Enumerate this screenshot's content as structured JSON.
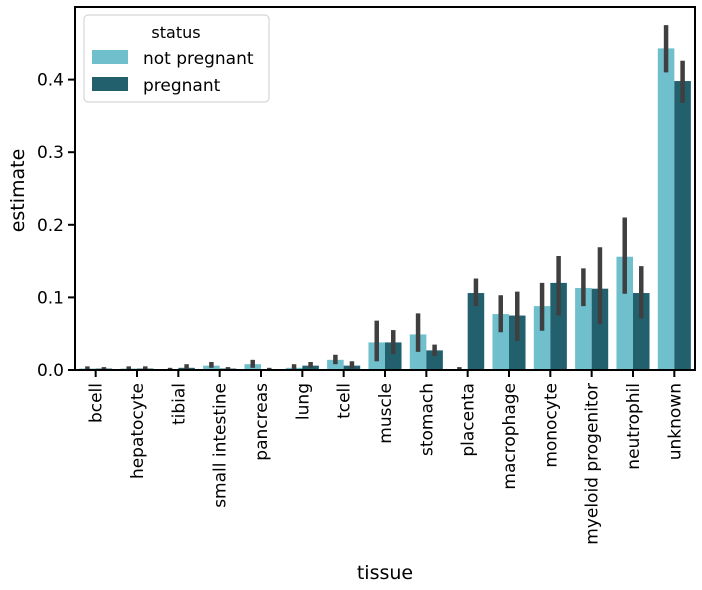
{
  "chart_data": {
    "type": "bar",
    "xlabel": "tissue",
    "ylabel": "estimate",
    "ylim": [
      0,
      0.5
    ],
    "yticks": [
      0.0,
      0.1,
      0.2,
      0.3,
      0.4
    ],
    "ytick_labels": [
      "0.0",
      "0.1",
      "0.2",
      "0.3",
      "0.4"
    ],
    "grid": false,
    "legend": {
      "title": "status",
      "position": "top-left"
    },
    "categories": [
      "bcell",
      "hepatocyte",
      "tibial",
      "small intestine",
      "pancreas",
      "lung",
      "tcell",
      "muscle",
      "stomach",
      "placenta",
      "macrophage",
      "monocyte",
      "myeloid progenitor",
      "neutrophil",
      "unknown"
    ],
    "series": [
      {
        "name": "not pregnant",
        "color": "#6fbfcc",
        "values": [
          0.002,
          0.002,
          0.001,
          0.006,
          0.008,
          0.003,
          0.014,
          0.038,
          0.049,
          0.0,
          0.077,
          0.088,
          0.113,
          0.156,
          0.443
        ],
        "err_low": [
          0.0,
          0.0,
          0.0,
          0.003,
          0.003,
          0.0,
          0.008,
          0.012,
          0.025,
          0.0,
          0.052,
          0.054,
          0.088,
          0.105,
          0.41
        ],
        "err_high": [
          0.005,
          0.005,
          0.003,
          0.011,
          0.014,
          0.008,
          0.021,
          0.068,
          0.078,
          0.004,
          0.103,
          0.12,
          0.14,
          0.21,
          0.475
        ]
      },
      {
        "name": "pregnant",
        "color": "#22606e",
        "values": [
          0.002,
          0.002,
          0.003,
          0.002,
          0.001,
          0.006,
          0.006,
          0.038,
          0.027,
          0.106,
          0.075,
          0.12,
          0.112,
          0.106,
          0.398
        ],
        "err_low": [
          0.0,
          0.0,
          0.0,
          0.0,
          0.0,
          0.003,
          0.002,
          0.022,
          0.019,
          0.088,
          0.04,
          0.075,
          0.063,
          0.071,
          0.368
        ],
        "err_high": [
          0.004,
          0.005,
          0.008,
          0.004,
          0.003,
          0.011,
          0.012,
          0.055,
          0.035,
          0.126,
          0.108,
          0.157,
          0.169,
          0.143,
          0.426
        ]
      }
    ]
  }
}
